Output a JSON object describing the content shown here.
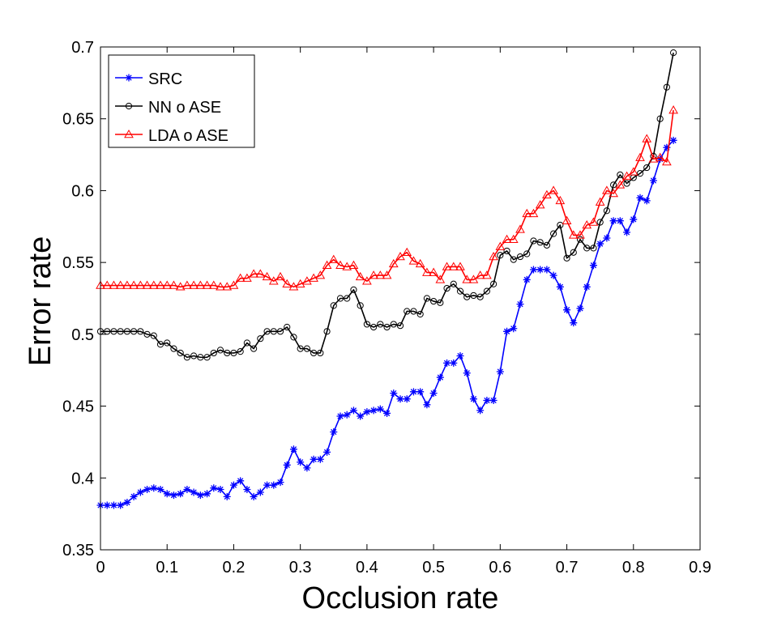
{
  "chart_data": {
    "type": "line",
    "xlabel": "Occlusion rate",
    "ylabel": "Error rate",
    "xlim": [
      0,
      0.9
    ],
    "ylim": [
      0.35,
      0.7
    ],
    "xticks": [
      "0",
      "0.1",
      "0.2",
      "0.3",
      "0.4",
      "0.5",
      "0.6",
      "0.7",
      "0.8",
      "0.9"
    ],
    "yticks": [
      "0.35",
      "0.4",
      "0.45",
      "0.5",
      "0.55",
      "0.6",
      "0.65",
      "0.7"
    ],
    "grid": false,
    "legend_position": "top-left",
    "x": [
      0,
      0.01,
      0.02,
      0.03,
      0.04,
      0.05,
      0.06,
      0.07,
      0.08,
      0.09,
      0.1,
      0.11,
      0.12,
      0.13,
      0.14,
      0.15,
      0.16,
      0.17,
      0.18,
      0.19,
      0.2,
      0.21,
      0.22,
      0.23,
      0.24,
      0.25,
      0.26,
      0.27,
      0.28,
      0.29,
      0.3,
      0.31,
      0.32,
      0.33,
      0.34,
      0.35,
      0.36,
      0.37,
      0.38,
      0.39,
      0.4,
      0.41,
      0.42,
      0.43,
      0.44,
      0.45,
      0.46,
      0.47,
      0.48,
      0.49,
      0.5,
      0.51,
      0.52,
      0.53,
      0.54,
      0.55,
      0.56,
      0.57,
      0.58,
      0.59,
      0.6,
      0.61,
      0.62,
      0.63,
      0.64,
      0.65,
      0.66,
      0.67,
      0.68,
      0.69,
      0.7,
      0.71,
      0.72,
      0.73,
      0.74,
      0.75,
      0.76,
      0.77,
      0.78,
      0.79,
      0.8,
      0.81,
      0.82,
      0.83,
      0.84,
      0.85,
      0.86
    ],
    "series": [
      {
        "name": "SRC",
        "color": "#0000ff",
        "marker": "asterisk",
        "values": [
          0.381,
          0.381,
          0.381,
          0.381,
          0.383,
          0.387,
          0.39,
          0.392,
          0.393,
          0.392,
          0.389,
          0.388,
          0.389,
          0.392,
          0.39,
          0.388,
          0.389,
          0.393,
          0.392,
          0.387,
          0.395,
          0.398,
          0.392,
          0.387,
          0.39,
          0.395,
          0.395,
          0.397,
          0.409,
          0.42,
          0.411,
          0.407,
          0.413,
          0.413,
          0.418,
          0.432,
          0.443,
          0.444,
          0.447,
          0.443,
          0.446,
          0.447,
          0.448,
          0.445,
          0.459,
          0.455,
          0.455,
          0.46,
          0.46,
          0.451,
          0.459,
          0.47,
          0.48,
          0.48,
          0.485,
          0.473,
          0.455,
          0.447,
          0.454,
          0.454,
          0.474,
          0.502,
          0.504,
          0.521,
          0.538,
          0.545,
          0.545,
          0.545,
          0.541,
          0.533,
          0.517,
          0.508,
          0.518,
          0.533,
          0.548,
          0.563,
          0.567,
          0.579,
          0.579,
          0.571,
          0.58,
          0.595,
          0.593,
          0.607,
          0.622,
          0.63,
          0.635
        ]
      },
      {
        "name": "NN o ASE",
        "color": "#000000",
        "marker": "circle",
        "values": [
          0.502,
          0.502,
          0.502,
          0.502,
          0.502,
          0.502,
          0.502,
          0.5,
          0.499,
          0.493,
          0.494,
          0.49,
          0.487,
          0.484,
          0.485,
          0.484,
          0.484,
          0.487,
          0.489,
          0.487,
          0.487,
          0.488,
          0.494,
          0.49,
          0.497,
          0.502,
          0.502,
          0.502,
          0.505,
          0.498,
          0.49,
          0.49,
          0.487,
          0.487,
          0.502,
          0.52,
          0.525,
          0.525,
          0.531,
          0.52,
          0.507,
          0.505,
          0.507,
          0.505,
          0.507,
          0.506,
          0.516,
          0.516,
          0.514,
          0.525,
          0.523,
          0.522,
          0.532,
          0.535,
          0.53,
          0.526,
          0.527,
          0.526,
          0.53,
          0.535,
          0.555,
          0.558,
          0.552,
          0.554,
          0.556,
          0.565,
          0.564,
          0.562,
          0.57,
          0.576,
          0.553,
          0.557,
          0.566,
          0.56,
          0.56,
          0.578,
          0.586,
          0.604,
          0.611,
          0.605,
          0.609,
          0.612,
          0.616,
          0.624,
          0.65,
          0.672,
          0.696
        ]
      },
      {
        "name": "LDA o ASE",
        "color": "#ff0000",
        "marker": "triangle",
        "values": [
          0.534,
          0.534,
          0.534,
          0.534,
          0.534,
          0.534,
          0.534,
          0.534,
          0.534,
          0.534,
          0.534,
          0.534,
          0.533,
          0.534,
          0.534,
          0.534,
          0.534,
          0.534,
          0.533,
          0.533,
          0.534,
          0.539,
          0.539,
          0.542,
          0.542,
          0.54,
          0.537,
          0.54,
          0.535,
          0.533,
          0.535,
          0.537,
          0.539,
          0.541,
          0.548,
          0.552,
          0.548,
          0.547,
          0.548,
          0.54,
          0.537,
          0.541,
          0.541,
          0.541,
          0.549,
          0.554,
          0.557,
          0.551,
          0.549,
          0.543,
          0.543,
          0.538,
          0.547,
          0.547,
          0.547,
          0.538,
          0.538,
          0.541,
          0.541,
          0.554,
          0.561,
          0.566,
          0.566,
          0.573,
          0.584,
          0.584,
          0.59,
          0.597,
          0.6,
          0.593,
          0.579,
          0.569,
          0.569,
          0.576,
          0.578,
          0.592,
          0.6,
          0.598,
          0.604,
          0.61,
          0.613,
          0.623,
          0.636,
          0.622,
          0.623,
          0.62,
          0.656
        ]
      }
    ]
  }
}
